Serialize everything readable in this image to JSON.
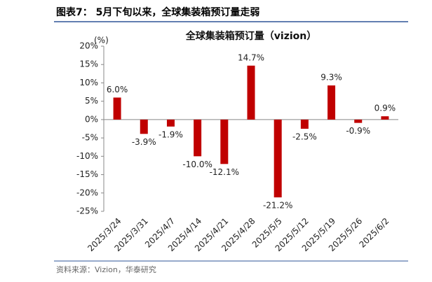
{
  "header": "图表7： 5月下旬以来，全球集装箱预订量走弱",
  "source": "资料来源：Vizion，华泰研究",
  "chart_data": {
    "type": "bar",
    "title": "全球集装箱预订量（vizion）",
    "y_unit": "(%)",
    "categories": [
      "2025/3/24",
      "2025/3/31",
      "2025/4/7",
      "2025/4/14",
      "2025/4/21",
      "2025/4/28",
      "2025/5/5",
      "2025/5/12",
      "2025/5/19",
      "2025/5/26",
      "2025/6/2"
    ],
    "values": [
      6.0,
      -3.9,
      -1.9,
      -10.0,
      -12.1,
      14.7,
      -21.2,
      -2.5,
      9.3,
      -0.9,
      0.9
    ],
    "value_labels": [
      "6.0%",
      "-3.9%",
      "-1.9%",
      "-10.0%",
      "-12.1%",
      "14.7%",
      "-21.2%",
      "-2.5%",
      "9.3%",
      "-0.9%",
      "0.9%"
    ],
    "color": "#c00000",
    "ylim": [
      -25,
      20
    ],
    "yticks": [
      {
        "value": -25,
        "label": "-25%"
      },
      {
        "value": -20,
        "label": "-20%"
      },
      {
        "value": -15,
        "label": "-15%"
      },
      {
        "value": -10,
        "label": "-10%"
      },
      {
        "value": -5,
        "label": "-5%"
      },
      {
        "value": 0,
        "label": "0%"
      },
      {
        "value": 5,
        "label": "5%"
      },
      {
        "value": 10,
        "label": "10%"
      },
      {
        "value": 15,
        "label": "15%"
      },
      {
        "value": 20,
        "label": "20%"
      }
    ]
  }
}
